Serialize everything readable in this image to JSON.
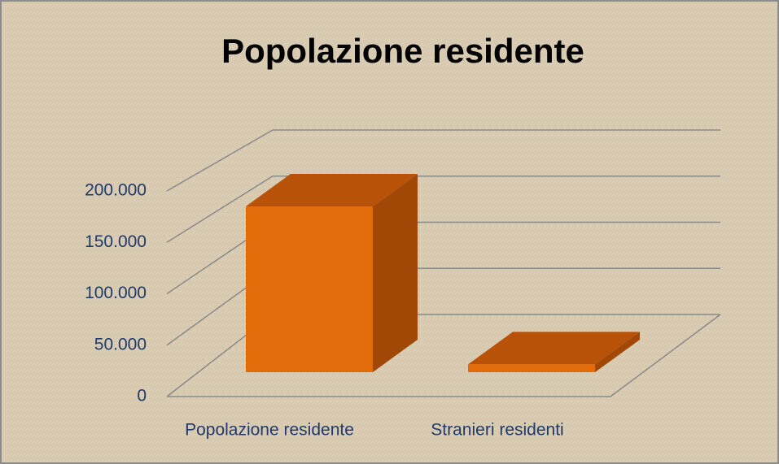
{
  "chart_data": {
    "type": "bar3d",
    "title": "Popolazione residente",
    "categories": [
      "Popolazione residente",
      "Stranieri residenti"
    ],
    "values": [
      170000,
      8000
    ],
    "color": "#e36c0a",
    "ylim": [
      0,
      200000
    ],
    "yticks": [
      0,
      {
        "value": 50000,
        "label": "50.000"
      },
      {
        "value": 100000,
        "label": "100.000"
      },
      {
        "value": 150000,
        "label": "150.000"
      },
      {
        "value": 200000,
        "label": "200.000"
      }
    ],
    "grid": true
  }
}
